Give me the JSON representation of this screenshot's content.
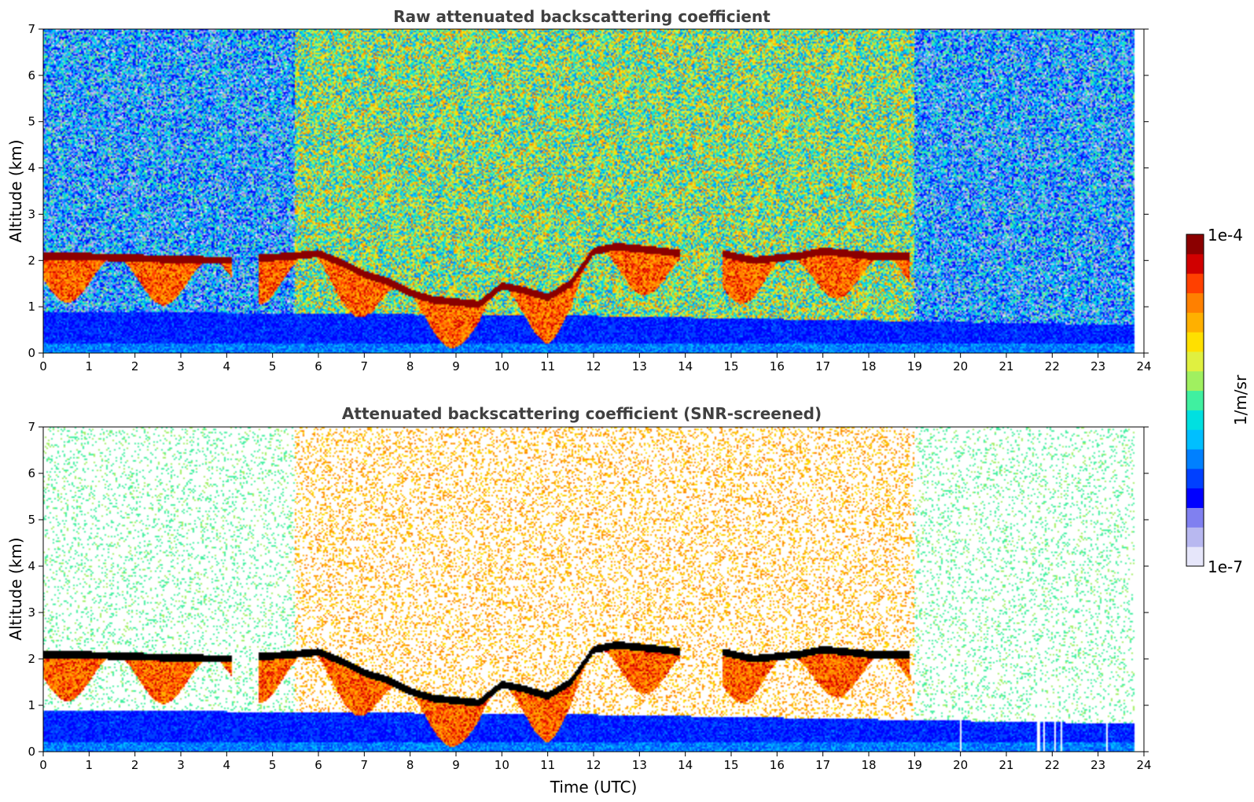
{
  "chart_data": [
    {
      "type": "heatmap",
      "title": "Raw attenuated backscattering coefficient",
      "xlabel": "",
      "ylabel": "Altitude (km)",
      "xlim": [
        0,
        24
      ],
      "ylim": [
        0,
        7
      ],
      "x_ticks": [
        0,
        1,
        2,
        3,
        4,
        5,
        6,
        7,
        8,
        9,
        10,
        11,
        12,
        13,
        14,
        15,
        16,
        17,
        18,
        19,
        20,
        21,
        22,
        23,
        24
      ],
      "y_ticks": [
        0,
        1,
        2,
        3,
        4,
        5,
        6,
        7
      ],
      "data_end_time": 23.8,
      "features": {
        "cloud_top_km": [
          [
            0.0,
            2.1
          ],
          [
            1.0,
            2.08
          ],
          [
            2.0,
            2.05
          ],
          [
            3.0,
            2.02
          ],
          [
            4.0,
            2.0
          ],
          [
            4.8,
            2.05
          ],
          [
            5.5,
            2.1
          ],
          [
            6.0,
            2.15
          ],
          [
            6.5,
            1.95
          ],
          [
            7.0,
            1.7
          ],
          [
            7.5,
            1.55
          ],
          [
            8.0,
            1.3
          ],
          [
            8.5,
            1.15
          ],
          [
            9.0,
            1.1
          ],
          [
            9.5,
            1.05
          ],
          [
            10.0,
            1.45
          ],
          [
            10.5,
            1.35
          ],
          [
            11.0,
            1.2
          ],
          [
            11.5,
            1.5
          ],
          [
            12.0,
            2.2
          ],
          [
            12.5,
            2.3
          ],
          [
            13.0,
            2.25
          ],
          [
            13.5,
            2.2
          ],
          [
            13.9,
            2.15
          ],
          [
            14.8,
            2.15
          ],
          [
            15.5,
            2.0
          ],
          [
            16.0,
            2.05
          ],
          [
            16.5,
            2.1
          ],
          [
            17.0,
            2.2
          ],
          [
            17.5,
            2.15
          ],
          [
            18.0,
            2.1
          ],
          [
            18.8,
            2.08
          ]
        ],
        "aerosol_layer_top_km": [
          [
            0,
            0.9
          ],
          [
            12,
            0.8
          ],
          [
            24,
            0.6
          ]
        ],
        "low_layer_segment_km": [
          [
            4.0,
            0.88
          ],
          [
            4.7,
            0.9
          ],
          [
            5.5,
            0.92
          ]
        ]
      }
    },
    {
      "type": "heatmap",
      "title": "Attenuated backscattering coefficient (SNR-screened)",
      "xlabel": "Time (UTC)",
      "ylabel": "Altitude (km)",
      "xlim": [
        0,
        24
      ],
      "ylim": [
        0,
        7
      ],
      "x_ticks": [
        0,
        1,
        2,
        3,
        4,
        5,
        6,
        7,
        8,
        9,
        10,
        11,
        12,
        13,
        14,
        15,
        16,
        17,
        18,
        19,
        20,
        21,
        22,
        23,
        24
      ],
      "y_ticks": [
        0,
        1,
        2,
        3,
        4,
        5,
        6,
        7
      ],
      "data_end_time": 23.8,
      "screened": true
    }
  ],
  "colorbar": {
    "min_label": "1e-7",
    "max_label": "1e-4",
    "unit_label": "1/m/sr",
    "colors": [
      "#e6e6fa",
      "#b8b8f0",
      "#8080f0",
      "#0000ff",
      "#0040ff",
      "#0080ff",
      "#00bfff",
      "#00e0e0",
      "#40f0a0",
      "#a0f060",
      "#e0f040",
      "#ffe000",
      "#ffb000",
      "#ff8000",
      "#ff4000",
      "#d00000",
      "#8b0000"
    ]
  }
}
